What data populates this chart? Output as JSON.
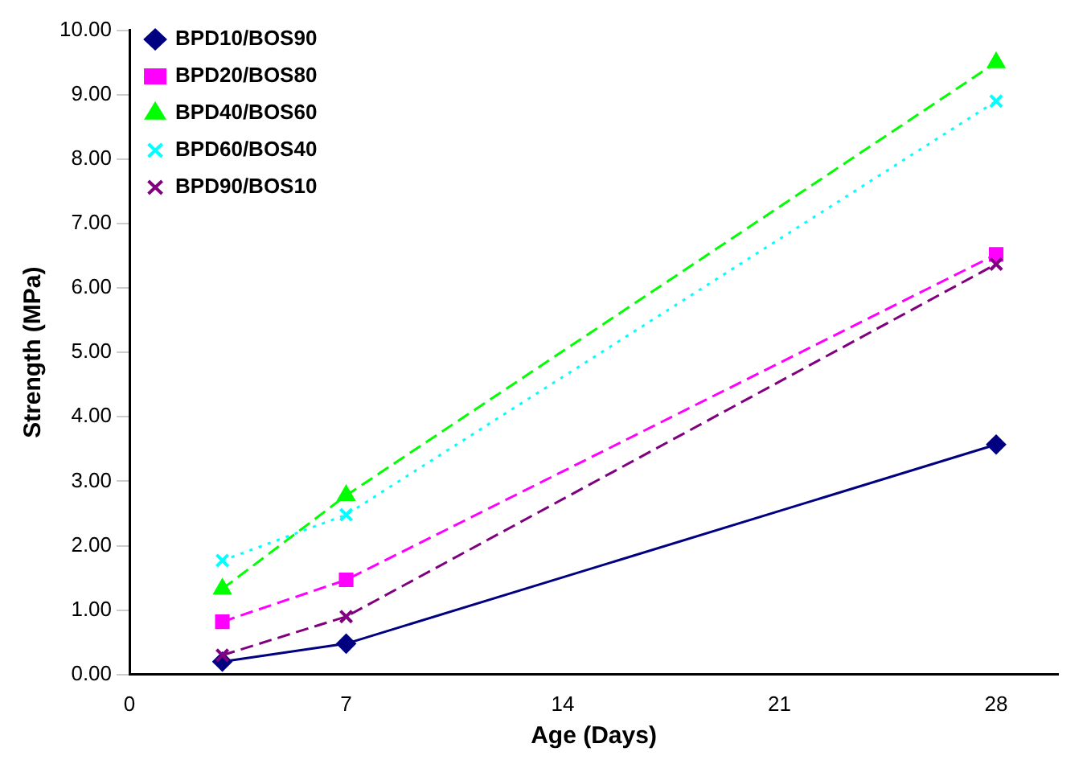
{
  "chart_data": {
    "type": "line",
    "xlabel": "Age (Days)",
    "ylabel": "Strength (MPa)",
    "x": [
      3,
      7,
      28
    ],
    "series": [
      {
        "name": "BPD10/BOS90",
        "color": "#000080",
        "values": [
          0.2,
          0.48,
          3.57
        ],
        "marker": "diamond",
        "line_style": "solid"
      },
      {
        "name": "BPD20/BOS80",
        "color": "#ff00ff",
        "values": [
          0.82,
          1.47,
          6.52
        ],
        "marker": "square",
        "line_style": "dashed"
      },
      {
        "name": "BPD40/BOS60",
        "color": "#00ff00",
        "values": [
          1.33,
          2.78,
          9.5
        ],
        "marker": "triangle",
        "line_style": "dashed"
      },
      {
        "name": "BPD60/BOS40",
        "color": "#00ffff",
        "values": [
          1.77,
          2.48,
          8.9
        ],
        "marker": "cross",
        "line_style": "dotted"
      },
      {
        "name": "BPD90/BOS10",
        "color": "#800080",
        "values": [
          0.3,
          0.9,
          6.37
        ],
        "marker": "cross",
        "line_style": "dashed"
      }
    ],
    "xlim": [
      0,
      30
    ],
    "xticks": [
      0,
      7,
      14,
      21,
      28
    ],
    "ylim": [
      0,
      10
    ],
    "yticks": [
      {
        "value": 0,
        "label": "0.00"
      },
      {
        "value": 1,
        "label": "1.00"
      },
      {
        "value": 2,
        "label": "2.00"
      },
      {
        "value": 3,
        "label": "3.00"
      },
      {
        "value": 4,
        "label": "4.00"
      },
      {
        "value": 5,
        "label": "5.00"
      },
      {
        "value": 6,
        "label": "6.00"
      },
      {
        "value": 7,
        "label": "7.00"
      },
      {
        "value": 8,
        "label": "8.00"
      },
      {
        "value": 9,
        "label": "9.00"
      },
      {
        "value": 10,
        "label": "10.00"
      }
    ],
    "grid": false,
    "legend": "top left"
  }
}
